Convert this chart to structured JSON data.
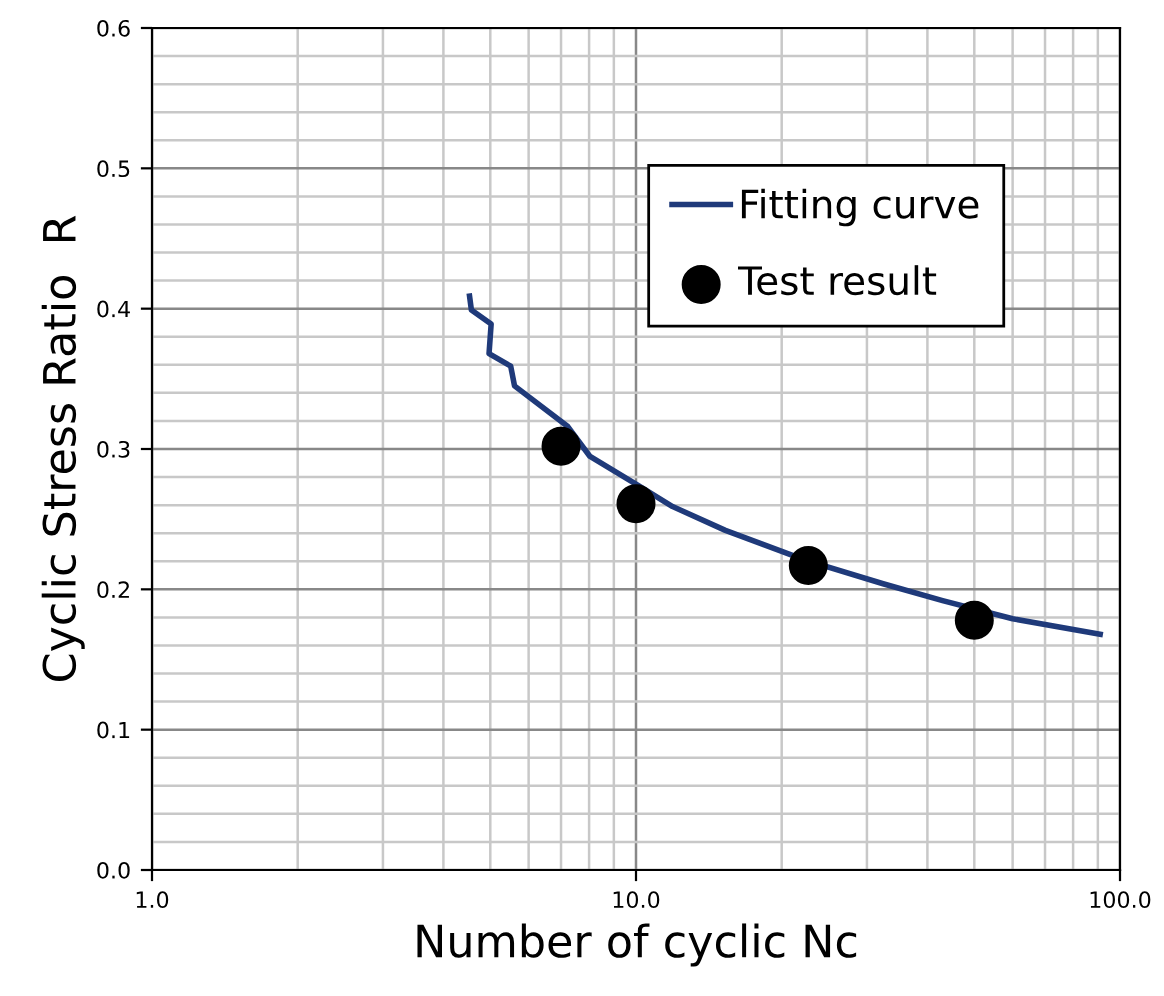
{
  "chart_data": {
    "type": "scatter",
    "xlabel": "Number of cyclic Nc",
    "ylabel": "Cyclic Stress Ratio  R",
    "log": "x",
    "xlim": [
      1,
      100
    ],
    "ylim": [
      0,
      0.6
    ],
    "xticks": [
      {
        "value": 1,
        "label": "1.0"
      },
      {
        "value": 10,
        "label": "10.0"
      },
      {
        "value": 100,
        "label": "100.0"
      }
    ],
    "yticks": [
      {
        "value": 0,
        "label": "0.0"
      },
      0.1,
      0.2,
      0.3,
      0.4,
      0.5,
      0.6
    ],
    "grid": true,
    "legend": "top right",
    "series": [
      {
        "name": "Fitting curve",
        "type": "line",
        "color": "#1f3a7a",
        "marker": "none",
        "line_style": "solid",
        "x": [
          4.53,
          4.57,
          5.02,
          4.97,
          5.51,
          5.61,
          7.23,
          8.02,
          10.1,
          11.9,
          15.3,
          22.3,
          32.4,
          43.0,
          60.0,
          91.0
        ],
        "values": [
          0.409,
          0.399,
          0.389,
          0.368,
          0.359,
          0.345,
          0.316,
          0.295,
          0.274,
          0.259,
          0.242,
          0.221,
          0.204,
          0.192,
          0.179,
          0.168
        ]
      },
      {
        "name": "Test result",
        "color": "#000000",
        "marker": "circle",
        "x": [
          7.0,
          10.0,
          22.7,
          50.0
        ],
        "values": [
          0.302,
          0.261,
          0.217,
          0.178
        ]
      }
    ]
  }
}
